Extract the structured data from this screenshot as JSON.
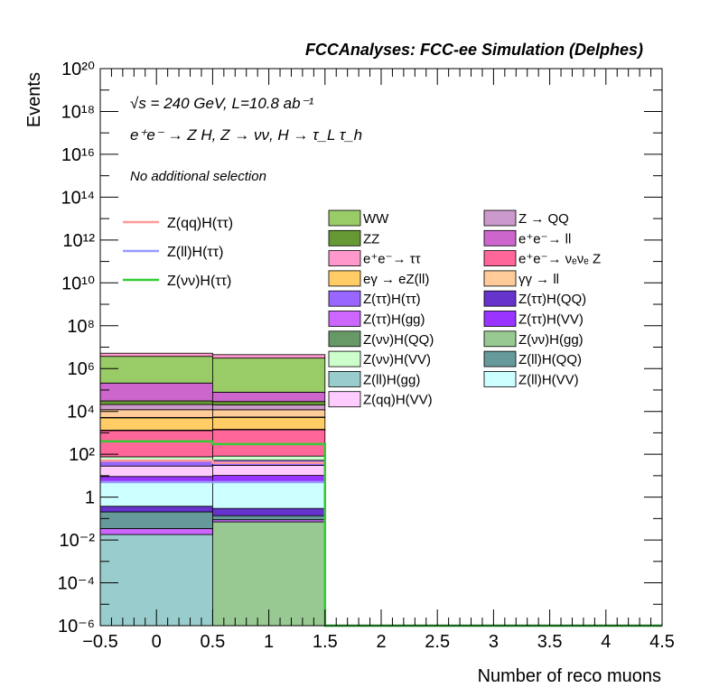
{
  "header": {
    "title": "FCCAnalyses: FCC-ee Simulation (Delphes)"
  },
  "annotations": {
    "energy_line": "√s = 240 GeV, L=10.8 ab⁻¹",
    "process_line": "e⁺e⁻ → Z H, Z → νν, H → τ_L τ_h",
    "selection_line": "No additional selection"
  },
  "chart_data": {
    "type": "bar",
    "stacked": true,
    "log_y": true,
    "xlabel": "Number of reco muons",
    "ylabel": "Events",
    "xlim": [
      -0.5,
      4.5
    ],
    "ylim": [
      1e-06,
      1e+20
    ],
    "x_ticks": [
      "−0.5",
      "0",
      "0.5",
      "1",
      "1.5",
      "2",
      "2.5",
      "3",
      "3.5",
      "4",
      "4.5"
    ],
    "y_ticks": [
      "10⁻⁶",
      "10⁻⁴",
      "10⁻²",
      "1",
      "10²",
      "10⁴",
      "10⁶",
      "10⁸",
      "10¹⁰",
      "10¹²",
      "10¹⁴",
      "10¹⁶",
      "10¹⁸",
      "10²⁰"
    ],
    "bins": [
      [
        -0.5,
        0.5
      ],
      [
        0.5,
        1.5
      ]
    ],
    "stack_bottom": 1e-06,
    "background_series": [
      {
        "name": "Z(ll)H(gg)",
        "color": "#99cccc",
        "values": [
          0.018,
          0.0
        ]
      },
      {
        "name": "Z(νν)H(gg)",
        "color": "#99c992",
        "values": [
          0.0,
          0.07
        ]
      },
      {
        "name": "Z(ττ)H(gg)",
        "color": "#cc66ff",
        "values": [
          0.016,
          0.018
        ]
      },
      {
        "name": "Z(ll)H(QQ)",
        "color": "#669999",
        "values": [
          0.17,
          0.048
        ]
      },
      {
        "name": "Z(ττ)H(QQ)",
        "color": "#6633cc",
        "values": [
          0.17,
          0.16
        ]
      },
      {
        "name": "Z(ll)H(VV)",
        "color": "#ccffff",
        "values": [
          4.5,
          5.0
        ]
      },
      {
        "name": "Z(ττ)H(VV)",
        "color": "#9933ff",
        "values": [
          4.3,
          5.0
        ]
      },
      {
        "name": "Z(qq)H(VV)",
        "color": "#ffccff",
        "values": [
          19,
          20
        ]
      },
      {
        "name": "Z(ττ)H(ττ)",
        "color": "#9966ff",
        "values": [
          21,
          22
        ]
      },
      {
        "name": "Z(νν)H(VV)",
        "color": "#ccffcc",
        "values": [
          27,
          30
        ]
      },
      {
        "name": "e⁺e⁻→ νₑνₑ Z",
        "color": "#ff6699",
        "values": [
          1200,
          1300
        ]
      },
      {
        "name": "Z(νν)H(QQ)",
        "color": "#669966",
        "values": [
          60,
          80
        ]
      },
      {
        "name": "eγ → eZ(ll)",
        "color": "#ffcc66",
        "values": [
          3700,
          3800
        ]
      },
      {
        "name": "e⁺e⁻→ ττ",
        "color": "#ff99cc",
        "values": [
          200,
          200
        ]
      },
      {
        "name": "γγ → ll",
        "color": "#ffcc99",
        "values": [
          6800,
          6500
        ]
      },
      {
        "name": "Z → QQ",
        "color": "#cc99cc",
        "values": [
          9000,
          8000
        ]
      },
      {
        "name": "ZZ",
        "color": "#669933",
        "values": [
          10000,
          9000
        ]
      },
      {
        "name": "e⁺e⁻→ ll",
        "color": "#cc66cc",
        "values": [
          180000,
          50000
        ]
      },
      {
        "name": "WW",
        "color": "#99cc66",
        "values": [
          3500000,
          3000000
        ]
      },
      {
        "name": "",
        "color": "#ff99cc",
        "values": [
          1500000,
          1400000
        ]
      }
    ],
    "signal_series": [
      {
        "name": "Z(qq)H(ττ)",
        "color": "#ff9999",
        "values": [
          50,
          40
        ]
      },
      {
        "name": "Z(ll)H(ττ)",
        "color": "#9999ff",
        "values": [
          5,
          5
        ]
      },
      {
        "name": "Z(νν)H(ττ)",
        "color": "#33cc33",
        "values": [
          400,
          300
        ]
      }
    ],
    "legend_signals": [
      "Z(qq)H(ττ)",
      "Z(ll)H(ττ)",
      "Z(νν)H(ττ)"
    ],
    "legend_backgrounds_col1": [
      "WW",
      "ZZ",
      "e⁺e⁻→ ττ",
      "eγ → eZ(ll)",
      "Z(ττ)H(ττ)",
      "Z(ττ)H(gg)",
      "Z(νν)H(QQ)",
      "Z(νν)H(VV)",
      "Z(ll)H(gg)",
      "Z(qq)H(VV)"
    ],
    "legend_backgrounds_col2": [
      "Z → QQ",
      "e⁺e⁻→ ll",
      "e⁺e⁻→ νₑνₑ Z",
      "γγ → ll",
      "Z(ττ)H(QQ)",
      "Z(ττ)H(VV)",
      "Z(νν)H(gg)",
      "Z(ll)H(QQ)",
      "Z(ll)H(VV)"
    ],
    "legend_colors": {
      "WW": "#99cc66",
      "ZZ": "#669933",
      "e⁺e⁻→ ττ": "#ff99cc",
      "eγ → eZ(ll)": "#ffcc66",
      "Z(ττ)H(ττ)": "#9966ff",
      "Z(ττ)H(gg)": "#cc66ff",
      "Z(νν)H(QQ)": "#669966",
      "Z(νν)H(VV)": "#ccffcc",
      "Z(ll)H(gg)": "#99cccc",
      "Z(qq)H(VV)": "#ffccff",
      "Z → QQ": "#cc99cc",
      "e⁺e⁻→ ll": "#cc66cc",
      "e⁺e⁻→ νₑνₑ Z": "#ff6699",
      "γγ → ll": "#ffcc99",
      "Z(ττ)H(QQ)": "#6633cc",
      "Z(ττ)H(VV)": "#9933ff",
      "Z(νν)H(gg)": "#99c992",
      "Z(ll)H(QQ)": "#669999",
      "Z(ll)H(VV)": "#ccffff",
      "Z(qq)H(ττ)": "#ff9999",
      "Z(ll)H(ττ)": "#9999ff",
      "Z(νν)H(ττ)": "#33cc33"
    }
  }
}
